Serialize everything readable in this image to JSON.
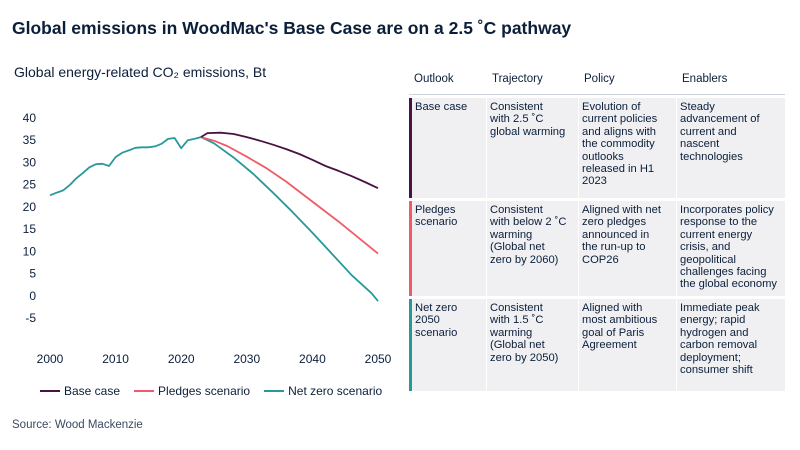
{
  "title": "Global emissions in WoodMac's Base Case are on a 2.5 ˚C pathway",
  "subtitle": "Global energy-related CO₂ emissions, Bt",
  "source": "Source: Wood Mackenzie",
  "colors": {
    "base": "#4a1142",
    "pledges": "#ef5c68",
    "netzero": "#27999a",
    "text": "#0b1f3a"
  },
  "chart_data": {
    "type": "line",
    "title": "Global energy-related CO₂ emissions, Bt",
    "xlim": [
      2000,
      2050
    ],
    "ylim": [
      -5,
      40
    ],
    "xticks": [
      2000,
      2010,
      2020,
      2030,
      2040,
      2050
    ],
    "yticks": [
      -5,
      0,
      5,
      10,
      15,
      20,
      25,
      30,
      35,
      40
    ],
    "grid": false,
    "legend_position": "bottom",
    "history": {
      "x": [
        2000,
        2001,
        2002,
        2003,
        2004,
        2005,
        2006,
        2007,
        2008,
        2009,
        2010,
        2011,
        2012,
        2013,
        2014,
        2015,
        2016,
        2017,
        2018,
        2019,
        2020,
        2021,
        2022,
        2023
      ],
      "y": [
        22.6,
        23.2,
        23.7,
        24.9,
        26.4,
        27.6,
        28.9,
        29.6,
        29.7,
        29.2,
        31.2,
        32.2,
        32.7,
        33.3,
        33.4,
        33.4,
        33.6,
        34.2,
        35.3,
        35.5,
        33.2,
        35.0,
        35.3,
        35.7
      ]
    },
    "series": [
      {
        "name": "Base case",
        "color": "#4a1142",
        "x": [
          2023,
          2024,
          2026,
          2028,
          2030,
          2032,
          2034,
          2036,
          2038,
          2040,
          2042,
          2044,
          2046,
          2048,
          2050
        ],
        "y": [
          35.7,
          36.6,
          36.7,
          36.4,
          35.7,
          34.9,
          34.0,
          33.0,
          31.9,
          30.6,
          29.2,
          28.1,
          26.9,
          25.6,
          24.2
        ]
      },
      {
        "name": "Pledges scenario",
        "color": "#ef5c68",
        "x": [
          2023,
          2025,
          2027,
          2030,
          2033,
          2036,
          2040,
          2044,
          2047,
          2050
        ],
        "y": [
          35.7,
          34.9,
          33.7,
          31.3,
          28.7,
          25.7,
          21.2,
          16.7,
          13.1,
          9.5
        ]
      },
      {
        "name": "Net zero scenario",
        "color": "#27999a",
        "x": [
          2023,
          2025,
          2028,
          2031,
          2034,
          2037,
          2040,
          2043,
          2046,
          2049,
          2050
        ],
        "y": [
          35.7,
          34.3,
          31.1,
          27.4,
          23.2,
          18.8,
          14.2,
          9.4,
          4.6,
          0.6,
          -1.2
        ]
      }
    ]
  },
  "table": {
    "headers": [
      "Outlook",
      "Trajectory",
      "Policy",
      "Enablers"
    ],
    "rows": [
      {
        "color": "#4a1142",
        "cells": [
          [
            "Base case"
          ],
          [
            "Consistent",
            "with 2.5 ˚C",
            "global warming"
          ],
          [
            "Evolution of",
            "current policies",
            "and aligns with",
            "the commodity",
            "outlooks",
            "released in H1",
            "2023"
          ],
          [
            "Steady",
            "advancement of",
            "current and",
            "nascent",
            "technologies"
          ]
        ]
      },
      {
        "color": "#ef5c68",
        "cells": [
          [
            "Pledges",
            "scenario"
          ],
          [
            "Consistent",
            "with below 2 ˚C",
            "warming",
            "(Global net",
            "zero by 2060)"
          ],
          [
            "Aligned with net",
            "zero pledges",
            "announced in",
            "the run-up to",
            "COP26"
          ],
          [
            "Incorporates policy",
            "response to the",
            "current energy",
            "crisis, and",
            "geopolitical",
            "challenges facing",
            "the global economy"
          ]
        ]
      },
      {
        "color": "#27999a",
        "cells": [
          [
            "Net zero",
            "2050",
            "scenario"
          ],
          [
            "Consistent",
            "with 1.5 ˚C",
            "warming",
            "(Global net",
            "zero by 2050)"
          ],
          [
            "Aligned with",
            "most ambitious",
            "goal of Paris",
            "Agreement"
          ],
          [
            "Immediate peak",
            "energy; rapid",
            "hydrogen and",
            "carbon removal",
            "deployment;",
            "consumer shift"
          ]
        ]
      }
    ]
  }
}
